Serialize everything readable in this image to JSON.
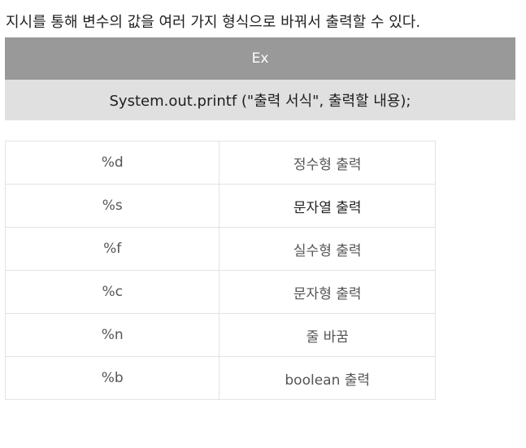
{
  "intro_text": "지시를 통해 변수의 값을 여러 가지 형식으로 바꿔서 출력할 수 있다.",
  "example": {
    "header": "Ex",
    "code": "System.out.printf (\"출력 서식\", 출력할 내용);"
  },
  "format_table": {
    "rows": [
      {
        "spec": "%d",
        "desc": "정수형 출력"
      },
      {
        "spec": "%s",
        "desc": "문자열 출력"
      },
      {
        "spec": "%f",
        "desc": "실수형 출력"
      },
      {
        "spec": "%c",
        "desc": "문자형 출력"
      },
      {
        "spec": "%n",
        "desc": "줄 바꿈"
      },
      {
        "spec": "%b",
        "desc": "boolean 출력"
      }
    ]
  },
  "colors": {
    "header_bg": "#999999",
    "code_bg": "#dfe0df",
    "table_border": "#e3e3e3"
  }
}
